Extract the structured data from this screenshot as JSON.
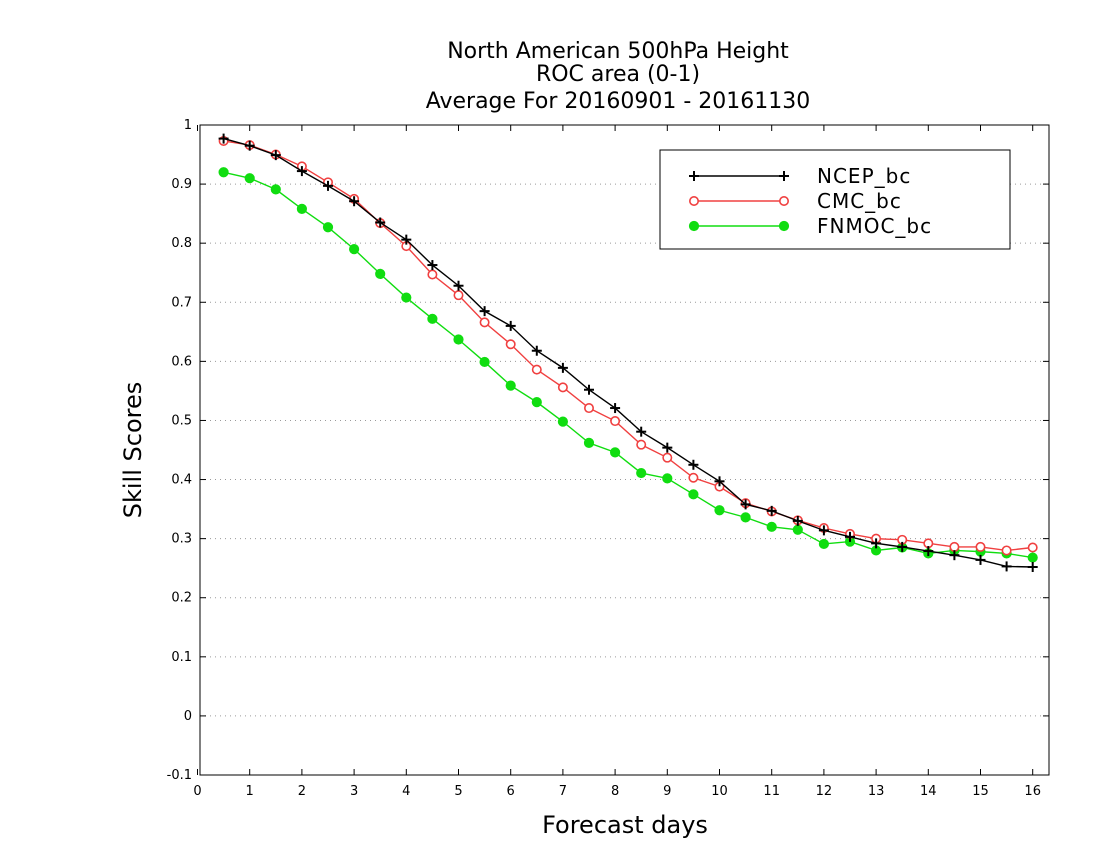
{
  "chart_data": {
    "type": "line",
    "title": [
      "North American 500hPa Height",
      "ROC area (0-1)",
      "Average For 20160901 - 20161130"
    ],
    "xlabel": "Forecast days",
    "ylabel": "Skill Scores",
    "xlim": [
      0,
      16.2
    ],
    "ylim": [
      -0.1,
      1
    ],
    "xticks": [
      0,
      1,
      2,
      3,
      4,
      5,
      6,
      7,
      8,
      9,
      10,
      11,
      12,
      13,
      14,
      15,
      16
    ],
    "xtick_labels": [
      "0",
      "1",
      "2",
      "3",
      "4",
      "5",
      "6",
      "7",
      "8",
      "9",
      "10",
      "11",
      "12",
      "13",
      "14",
      "15",
      "16"
    ],
    "yticks": [
      -0.1,
      0,
      0.1,
      0.2,
      0.3,
      0.4,
      0.5,
      0.6,
      0.7,
      0.8,
      0.9,
      1
    ],
    "ytick_labels": [
      "-0.1",
      "0",
      "0.1",
      "0.2",
      "0.3",
      "0.4",
      "0.5",
      "0.6",
      "0.7",
      "0.8",
      "0.9",
      "1"
    ],
    "grid": "horizontal dotted",
    "legend_position": "top-right",
    "x": [
      0.5,
      1,
      1.5,
      2,
      2.5,
      3,
      3.5,
      4,
      4.5,
      5,
      5.5,
      6,
      6.5,
      7,
      7.5,
      8,
      8.5,
      9,
      9.5,
      10,
      10.5,
      11,
      11.5,
      12,
      12.5,
      13,
      13.5,
      14,
      14.5,
      15,
      15.5,
      16
    ],
    "series": [
      {
        "name": "NCEP_bc",
        "color": "#000000",
        "marker": "plus",
        "values": [
          0.977,
          0.965,
          0.949,
          0.922,
          0.897,
          0.871,
          0.835,
          0.806,
          0.763,
          0.728,
          0.685,
          0.66,
          0.618,
          0.589,
          0.552,
          0.521,
          0.481,
          0.454,
          0.425,
          0.397,
          0.358,
          0.347,
          0.33,
          0.314,
          0.303,
          0.292,
          0.286,
          0.279,
          0.272,
          0.264,
          0.253,
          0.252
        ]
      },
      {
        "name": "CMC_bc",
        "color": "#f04040",
        "marker": "open-circle",
        "values": [
          0.973,
          0.966,
          0.95,
          0.93,
          0.903,
          0.875,
          0.834,
          0.795,
          0.747,
          0.712,
          0.666,
          0.629,
          0.586,
          0.556,
          0.521,
          0.499,
          0.459,
          0.437,
          0.403,
          0.388,
          0.36,
          0.346,
          0.331,
          0.318,
          0.308,
          0.3,
          0.298,
          0.292,
          0.286,
          0.286,
          0.28,
          0.285
        ]
      },
      {
        "name": "FNMOC_bc",
        "color": "#10dd10",
        "marker": "filled-circle",
        "values": [
          0.92,
          0.91,
          0.891,
          0.858,
          0.827,
          0.79,
          0.748,
          0.708,
          0.672,
          0.637,
          0.599,
          0.559,
          0.531,
          0.498,
          0.462,
          0.446,
          0.411,
          0.402,
          0.375,
          0.348,
          0.336,
          0.32,
          0.315,
          0.291,
          0.295,
          0.28,
          0.285,
          0.275,
          0.28,
          0.278,
          0.275,
          0.268
        ]
      }
    ]
  }
}
